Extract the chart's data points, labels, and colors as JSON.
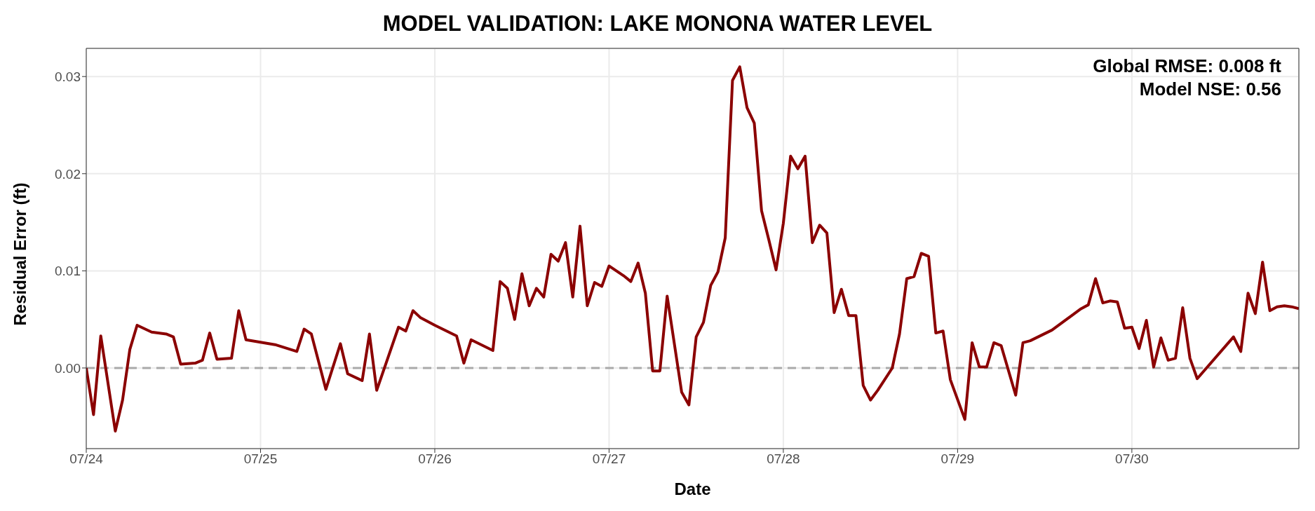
{
  "chart_data": {
    "type": "line",
    "title": "MODEL VALIDATION: LAKE MONONA WATER LEVEL",
    "xlabel": "Date",
    "ylabel": "Residual Error (ft)",
    "annotations": [
      "Global RMSE: 0.008 ft",
      "Model NSE: 0.56"
    ],
    "series": [
      {
        "color": "#8b0000",
        "x": [
          "--07-24T00:00",
          "--07-24T01:00",
          "--07-24T02:00",
          "--07-24T04:00",
          "--07-24T05:00",
          "--07-24T06:00",
          "--07-24T07:00",
          "--07-24T09:00",
          "--07-24T11:00",
          "--07-24T12:00",
          "--07-24T13:00",
          "--07-24T15:00",
          "--07-24T16:00",
          "--07-24T17:00",
          "--07-24T18:00",
          "--07-24T20:00",
          "--07-24T21:00",
          "--07-24T22:00",
          "--07-25T02:00",
          "--07-25T05:00",
          "--07-25T06:00",
          "--07-25T07:00",
          "--07-25T09:00",
          "--07-25T11:00",
          "--07-25T12:00",
          "--07-25T14:00",
          "--07-25T15:00",
          "--07-25T16:00",
          "--07-25T19:00",
          "--07-25T20:00",
          "--07-25T21:00",
          "--07-25T22:00",
          "--07-26T00:00",
          "--07-26T03:00",
          "--07-26T04:00",
          "--07-26T05:00",
          "--07-26T08:00",
          "--07-26T09:00",
          "--07-26T10:00",
          "--07-26T11:00",
          "--07-26T12:00",
          "--07-26T13:00",
          "--07-26T14:00",
          "--07-26T15:00",
          "--07-26T16:00",
          "--07-26T17:00",
          "--07-26T18:00",
          "--07-26T19:00",
          "--07-26T20:00",
          "--07-26T21:00",
          "--07-26T22:00",
          "--07-26T23:00",
          "--07-27T00:00",
          "--07-27T02:00",
          "--07-27T03:00",
          "--07-27T04:00",
          "--07-27T05:00",
          "--07-27T06:00",
          "--07-27T07:00",
          "--07-27T08:00",
          "--07-27T10:00",
          "--07-27T11:00",
          "--07-27T12:00",
          "--07-27T13:00",
          "--07-27T14:00",
          "--07-27T15:00",
          "--07-27T16:00",
          "--07-27T17:00",
          "--07-27T18:00",
          "--07-27T19:00",
          "--07-27T20:00",
          "--07-27T21:00",
          "--07-27T22:00",
          "--07-27T23:00",
          "--07-28T00:00",
          "--07-28T01:00",
          "--07-28T02:00",
          "--07-28T03:00",
          "--07-28T04:00",
          "--07-28T05:00",
          "--07-28T06:00",
          "--07-28T07:00",
          "--07-28T08:00",
          "--07-28T09:00",
          "--07-28T10:00",
          "--07-28T11:00",
          "--07-28T12:00",
          "--07-28T13:00",
          "--07-28T15:00",
          "--07-28T16:00",
          "--07-28T17:00",
          "--07-28T18:00",
          "--07-28T19:00",
          "--07-28T20:00",
          "--07-28T21:00",
          "--07-28T22:00",
          "--07-28T23:00",
          "--07-29T01:00",
          "--07-29T02:00",
          "--07-29T03:00",
          "--07-29T04:00",
          "--07-29T05:00",
          "--07-29T06:00",
          "--07-29T08:00",
          "--07-29T09:00",
          "--07-29T10:00",
          "--07-29T13:00",
          "--07-29T15:00",
          "--07-29T17:00",
          "--07-29T18:00",
          "--07-29T19:00",
          "--07-29T20:00",
          "--07-29T21:00",
          "--07-29T22:00",
          "--07-29T23:00",
          "--07-30T00:00",
          "--07-30T01:00",
          "--07-30T02:00",
          "--07-30T03:00",
          "--07-30T04:00",
          "--07-30T05:00",
          "--07-30T06:00",
          "--07-30T07:00",
          "--07-30T08:00",
          "--07-30T09:00",
          "--07-30T14:00",
          "--07-30T15:00",
          "--07-30T16:00",
          "--07-30T17:00",
          "--07-30T18:00",
          "--07-30T19:00",
          "--07-30T20:00",
          "--07-30T21:00",
          "--07-30T22:00",
          "--07-30T23:00"
        ],
        "values": [
          0,
          -0.0048,
          0.0033,
          -0.0065,
          -0.0033,
          0.0019,
          0.0044,
          0.0037,
          0.0035,
          0.0032,
          0.0004,
          0.0005,
          0.0008,
          0.0036,
          0.0009,
          0.001,
          0.0059,
          0.0029,
          0.0024,
          0.0017,
          0.004,
          0.0035,
          -0.0022,
          0.0025,
          -0.0006,
          -0.0013,
          0.0035,
          -0.0023,
          0.0042,
          0.0038,
          0.0059,
          0.0052,
          0.0044,
          0.0033,
          0.0005,
          0.0029,
          0.0018,
          0.0089,
          0.0082,
          0.005,
          0.0097,
          0.0064,
          0.0082,
          0.0073,
          0.0117,
          0.011,
          0.0129,
          0.0073,
          0.0146,
          0.0064,
          0.0088,
          0.0084,
          0.0105,
          0.0095,
          0.0089,
          0.0108,
          0.0077,
          -0.0003,
          -0.0003,
          0.0074,
          -0.0025,
          -0.0038,
          0.0032,
          0.0047,
          0.0085,
          0.0099,
          0.0134,
          0.0296,
          0.031,
          0.0268,
          0.0252,
          0.0162,
          0.0132,
          0.0101,
          0.0149,
          0.0218,
          0.0205,
          0.0218,
          0.0129,
          0.0147,
          0.0139,
          0.0057,
          0.0081,
          0.0054,
          0.0054,
          -0.0018,
          -0.0033,
          -0.0023,
          0,
          0.0035,
          0.0092,
          0.0094,
          0.0118,
          0.0115,
          0.0036,
          0.0038,
          -0.0012,
          -0.0053,
          0.0026,
          0.0001,
          0.0001,
          0.0026,
          0.0023,
          -0.0028,
          0.0026,
          0.0028,
          0.0039,
          0.005,
          0.0061,
          0.0065,
          0.0092,
          0.0067,
          0.0069,
          0.0068,
          0.0041,
          0.0042,
          0.002,
          0.0049,
          0.0001,
          0.0031,
          0.0008,
          0.001,
          0.0062,
          0.001,
          -0.0011,
          0.0032,
          0.0017,
          0.0077,
          0.0056,
          0.0109,
          0.0059,
          0.0063,
          0.0064,
          0.0063,
          0.0061
        ]
      }
    ],
    "xlim": [
      "--07-24T00:00",
      "--07-30T23:00"
    ],
    "xticks": [
      {
        "value": "--07-24",
        "label": "07/24"
      },
      {
        "value": "--07-25",
        "label": "07/25"
      },
      {
        "value": "--07-26",
        "label": "07/26"
      },
      {
        "value": "--07-27",
        "label": "07/27"
      },
      {
        "value": "--07-28",
        "label": "07/28"
      },
      {
        "value": "--07-29",
        "label": "07/29"
      },
      {
        "value": "--07-30",
        "label": "07/30"
      }
    ],
    "ylim": [
      -0.0083,
      0.0329
    ],
    "yticks": [
      {
        "value": 0,
        "label": "0.00"
      },
      {
        "value": 0.01,
        "label": "0.01"
      },
      {
        "value": 0.02,
        "label": "0.02"
      },
      {
        "value": 0.03,
        "label": "0.03"
      }
    ],
    "ref_lines": [
      {
        "axis": "y",
        "value": 0,
        "color": "#a9a9a9",
        "line_style": "dashed"
      }
    ],
    "grid": true,
    "legend": false,
    "marker": "none",
    "line_style": "solid"
  }
}
